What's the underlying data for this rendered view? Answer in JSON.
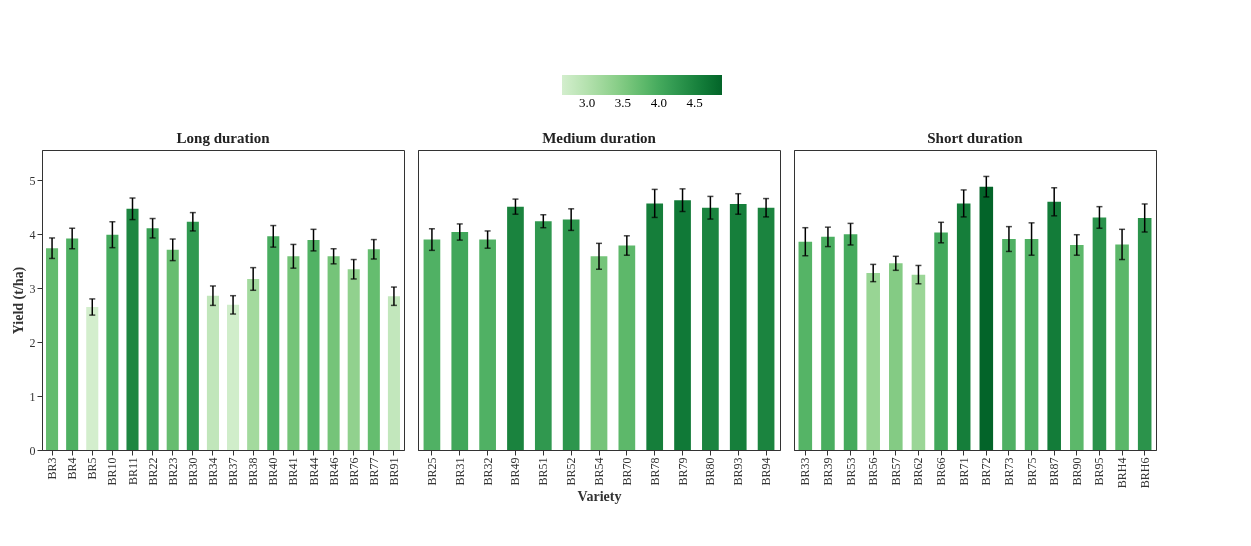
{
  "chart_data": [
    {
      "type": "bar",
      "title": "Long duration",
      "ylabel": "Yield (t/ha)",
      "categories": [
        "BR3",
        "BR4",
        "BR5",
        "BR10",
        "BR11",
        "BR22",
        "BR23",
        "BR30",
        "BR34",
        "BR37",
        "BR38",
        "BR40",
        "BR41",
        "BR44",
        "BR46",
        "BR76",
        "BR77",
        "BR91"
      ],
      "values": [
        3.74,
        3.92,
        2.65,
        3.99,
        4.47,
        4.11,
        3.71,
        4.23,
        2.86,
        2.69,
        3.17,
        3.96,
        3.59,
        3.89,
        3.59,
        3.35,
        3.72,
        2.85
      ],
      "errors": [
        0.19,
        0.19,
        0.15,
        0.24,
        0.2,
        0.18,
        0.2,
        0.17,
        0.18,
        0.17,
        0.21,
        0.2,
        0.22,
        0.2,
        0.14,
        0.18,
        0.18,
        0.17
      ],
      "ylim": [
        0,
        5.56
      ],
      "yticks": [
        0,
        1,
        2,
        3,
        4,
        5
      ],
      "grid": false,
      "clim": [
        2.65,
        4.88
      ],
      "cticks": [
        {
          "value": 3,
          "label": "3.0"
        },
        3.5,
        {
          "value": 4,
          "label": "4.0"
        },
        4.5
      ]
    },
    {
      "type": "bar",
      "title": "Medium duration",
      "xlabel": "Variety",
      "categories": [
        "BR25",
        "BR31",
        "BR32",
        "BR49",
        "BR51",
        "BR52",
        "BR54",
        "BR70",
        "BR78",
        "BR79",
        "BR80",
        "BR93",
        "BR94"
      ],
      "values": [
        3.9,
        4.04,
        3.9,
        4.51,
        4.24,
        4.27,
        3.59,
        3.79,
        4.57,
        4.63,
        4.49,
        4.56,
        4.49
      ],
      "errors": [
        0.2,
        0.15,
        0.16,
        0.14,
        0.12,
        0.2,
        0.24,
        0.18,
        0.26,
        0.21,
        0.21,
        0.19,
        0.17
      ],
      "ylim": [
        0,
        5.56
      ],
      "tick_labels": "x",
      "grid": false
    },
    {
      "type": "bar",
      "title": "Short duration",
      "categories": [
        "BR33",
        "BR39",
        "BR53",
        "BR56",
        "BR57",
        "BR62",
        "BR66",
        "BR71",
        "BR72",
        "BR73",
        "BR75",
        "BR87",
        "BR90",
        "BR95",
        "BRH4",
        "BRH6"
      ],
      "values": [
        3.86,
        3.95,
        4.0,
        3.28,
        3.46,
        3.25,
        4.03,
        4.57,
        4.88,
        3.91,
        3.91,
        4.6,
        3.8,
        4.31,
        3.81,
        4.3
      ],
      "errors": [
        0.26,
        0.18,
        0.2,
        0.16,
        0.13,
        0.17,
        0.19,
        0.25,
        0.19,
        0.23,
        0.3,
        0.26,
        0.19,
        0.2,
        0.28,
        0.26
      ],
      "ylim": [
        0,
        5.56
      ],
      "tick_labels": "x",
      "grid": false
    }
  ]
}
